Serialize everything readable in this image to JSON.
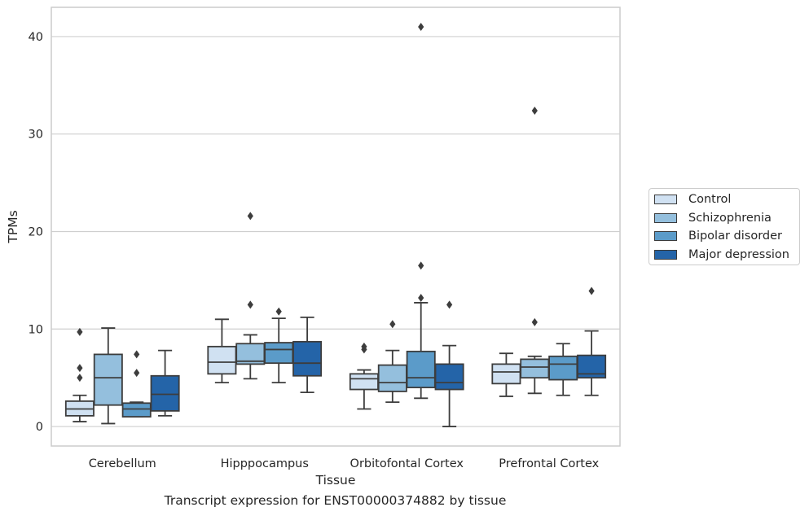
{
  "chart_data": {
    "type": "box",
    "xlabel": "Tissue",
    "ylabel": "TPMs",
    "categories": [
      "Cerebellum",
      "Hipppocampus",
      "Orbitofontal Cortex",
      "Prefrontal Cortex"
    ],
    "ylim": [
      -2,
      43
    ],
    "yticks": [
      "0",
      "10",
      "20",
      "30",
      "40"
    ],
    "grid": true,
    "legend_position": "right",
    "series": [
      {
        "name": "Control",
        "color": "#d0e1f2",
        "boxes": [
          {
            "whislo": 0.5,
            "q1": 1.1,
            "median": 1.8,
            "q3": 2.6,
            "whishi": 3.2,
            "fliers": [
              9.7,
              6.0,
              5.0
            ]
          },
          {
            "whislo": 4.5,
            "q1": 5.4,
            "median": 6.6,
            "q3": 8.2,
            "whishi": 11.0,
            "fliers": []
          },
          {
            "whislo": 1.8,
            "q1": 3.8,
            "median": 4.9,
            "q3": 5.4,
            "whishi": 5.8,
            "fliers": [
              8.2,
              7.9
            ]
          },
          {
            "whislo": 3.1,
            "q1": 4.4,
            "median": 5.6,
            "q3": 6.4,
            "whishi": 7.5,
            "fliers": []
          }
        ]
      },
      {
        "name": "Schizophrenia",
        "color": "#94bfdd",
        "boxes": [
          {
            "whislo": 0.3,
            "q1": 2.2,
            "median": 5.0,
            "q3": 7.4,
            "whishi": 10.1,
            "fliers": []
          },
          {
            "whislo": 4.9,
            "q1": 6.4,
            "median": 6.7,
            "q3": 8.5,
            "whishi": 9.4,
            "fliers": [
              21.6,
              12.5
            ]
          },
          {
            "whislo": 2.5,
            "q1": 3.6,
            "median": 4.5,
            "q3": 6.3,
            "whishi": 7.8,
            "fliers": [
              10.5
            ]
          },
          {
            "whislo": 3.4,
            "q1": 5.0,
            "median": 6.1,
            "q3": 6.9,
            "whishi": 7.2,
            "fliers": [
              32.4,
              10.7
            ]
          }
        ]
      },
      {
        "name": "Bipolar disorder",
        "color": "#5b9bc9",
        "boxes": [
          {
            "whislo": 1.0,
            "q1": 1.0,
            "median": 1.8,
            "q3": 2.4,
            "whishi": 2.5,
            "fliers": [
              7.4,
              5.5
            ]
          },
          {
            "whislo": 4.5,
            "q1": 6.5,
            "median": 7.9,
            "q3": 8.6,
            "whishi": 11.1,
            "fliers": [
              11.8
            ]
          },
          {
            "whislo": 2.9,
            "q1": 4.0,
            "median": 5.0,
            "q3": 7.7,
            "whishi": 12.7,
            "fliers": [
              41.0,
              16.5,
              13.2
            ]
          },
          {
            "whislo": 3.2,
            "q1": 4.8,
            "median": 6.4,
            "q3": 7.2,
            "whishi": 8.5,
            "fliers": []
          }
        ]
      },
      {
        "name": "Major depression",
        "color": "#2464a8",
        "boxes": [
          {
            "whislo": 1.1,
            "q1": 1.6,
            "median": 3.3,
            "q3": 5.2,
            "whishi": 7.8,
            "fliers": []
          },
          {
            "whislo": 3.5,
            "q1": 5.2,
            "median": 6.5,
            "q3": 8.7,
            "whishi": 11.2,
            "fliers": []
          },
          {
            "whislo": 0.0,
            "q1": 3.8,
            "median": 4.5,
            "q3": 6.4,
            "whishi": 8.3,
            "fliers": [
              12.5
            ]
          },
          {
            "whislo": 3.2,
            "q1": 5.0,
            "median": 5.4,
            "q3": 7.3,
            "whishi": 9.8,
            "fliers": [
              13.9
            ]
          }
        ]
      }
    ]
  },
  "caption": "Transcript expression for ENST00000374882 by tissue"
}
